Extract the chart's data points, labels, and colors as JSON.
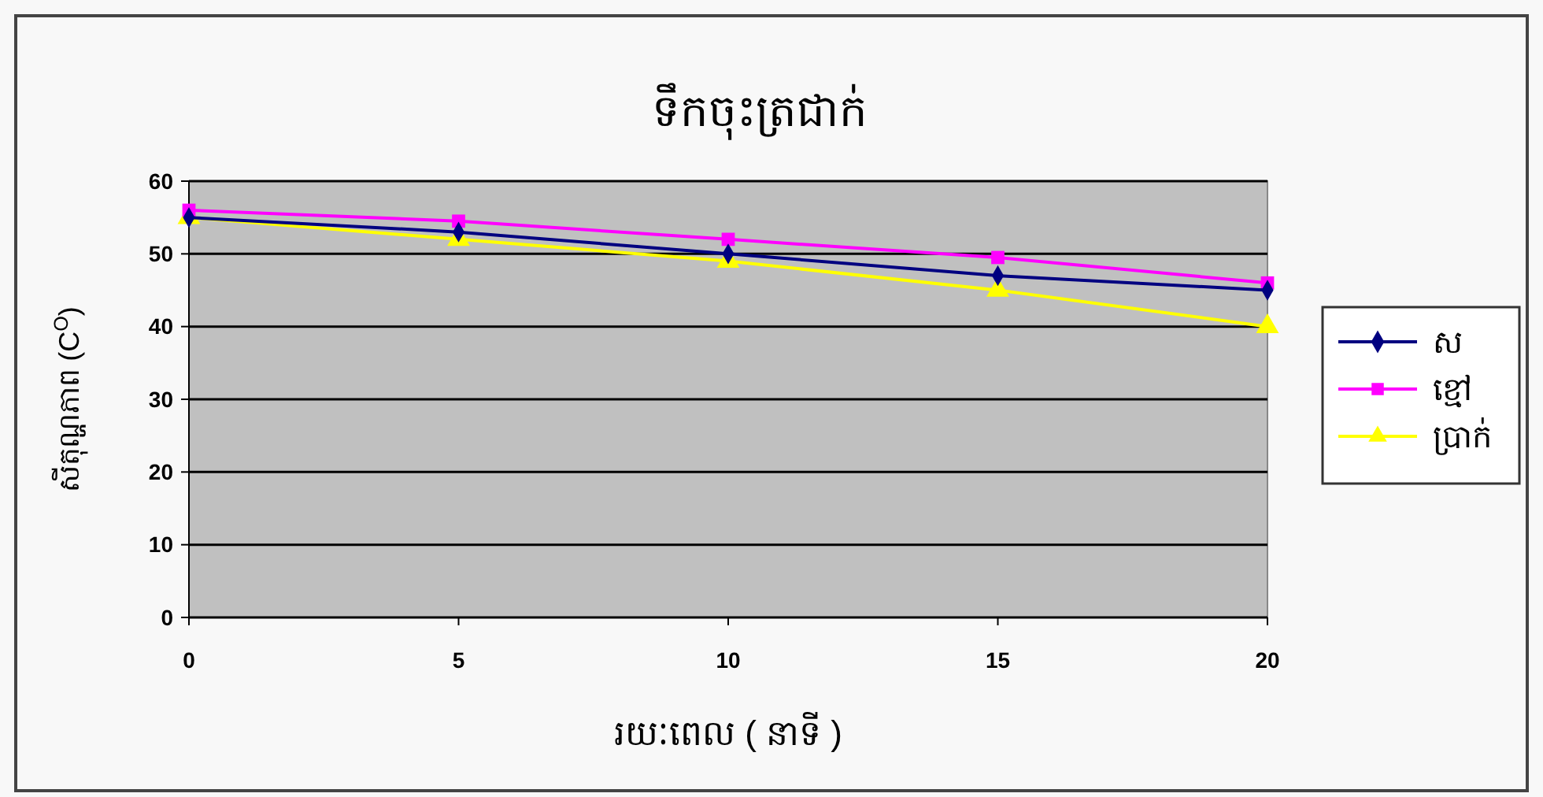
{
  "chart_data": {
    "type": "line",
    "title": "ទឹកចុះត្រជាក់",
    "xlabel": "រយៈពេល ( នាទី )",
    "ylabel": "សីតុណ្ហភាព (C$^{O}$)",
    "x": [
      0,
      5,
      10,
      15,
      20
    ],
    "series": [
      {
        "name": "ស",
        "color": "#000080",
        "marker": "diamond",
        "values": [
          55,
          53,
          50,
          47,
          45
        ]
      },
      {
        "name": "ខ្មៅ",
        "color": "#ff00ff",
        "marker": "square",
        "values": [
          56,
          54.5,
          52,
          49.5,
          46
        ]
      },
      {
        "name": "ប្រាក់",
        "color": "#ffff00",
        "marker": "triangle",
        "values": [
          55,
          52,
          49,
          45,
          40
        ]
      }
    ],
    "xlim": [
      0,
      20
    ],
    "xticks": [
      0,
      5,
      10,
      15,
      20
    ],
    "ylim": [
      0,
      60
    ],
    "yticks": [
      0,
      10,
      20,
      30,
      40,
      50,
      60
    ],
    "grid": "y",
    "legend": "right"
  }
}
